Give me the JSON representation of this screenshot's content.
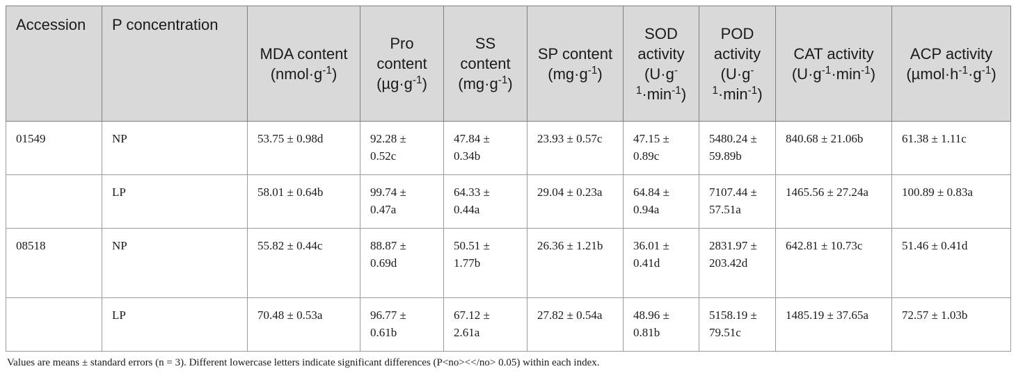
{
  "columns": [
    {
      "label": "Accession"
    },
    {
      "label": "P concentration"
    },
    {
      "html": "MDA content (nmol·g<sup>-1</sup>)"
    },
    {
      "html": "Pro content (µg·g<sup>-1</sup>)"
    },
    {
      "html": "SS content (mg·g<sup>-1</sup>)"
    },
    {
      "html": "SP content (mg·g<sup>-1</sup>)"
    },
    {
      "html": "SOD activity (U·g<sup>-1</sup>·min<sup>-1</sup>)"
    },
    {
      "html": "POD activity (U·g<sup>-1</sup>·min<sup>-1</sup>)"
    },
    {
      "html": "CAT activity (U·g<sup>-1</sup>·min<sup>-1</sup>)"
    },
    {
      "html": "ACP activity (µmol·h<sup>-1</sup>·g<sup>-1</sup>)"
    }
  ],
  "rows": [
    {
      "accession": "01549",
      "p": "NP",
      "mda": "53.75 ± 0.98d",
      "pro": "92.28 ± 0.52c",
      "ss": "47.84 ± 0.34b",
      "sp": "23.93 ± 0.57c",
      "sod": "47.15 ± 0.89c",
      "pod": "5480.24 ± 59.89b",
      "cat": "840.68 ± 21.06b",
      "acp": "61.38 ± 1.11c"
    },
    {
      "accession": "",
      "p": "LP",
      "mda": "58.01 ± 0.64b",
      "pro": "99.74 ± 0.47a",
      "ss": "64.33 ± 0.44a",
      "sp": "29.04 ± 0.23a",
      "sod": "64.84 ± 0.94a",
      "pod": "7107.44 ± 57.51a",
      "cat": "1465.56 ± 27.24a",
      "acp": "100.89 ± 0.83a"
    },
    {
      "accession": "08518",
      "p": "NP",
      "mda": "55.82 ± 0.44c",
      "pro": "88.87 ± 0.69d",
      "ss": "50.51 ± 1.77b",
      "sp": "26.36 ± 1.21b",
      "sod": "36.01 ± 0.41d",
      "pod": "2831.97 ± 203.42d",
      "cat": "642.81 ± 10.73c",
      "acp": "51.46 ± 0.41d"
    },
    {
      "accession": "",
      "p": "LP",
      "mda": "70.48 ± 0.53a",
      "pro": "96.77 ± 0.61b",
      "ss": "67.12 ± 2.61a",
      "sp": "27.82 ± 0.54a",
      "sod": "48.96 ± 0.81b",
      "pod": "5158.19 ± 79.51c",
      "cat": "1485.19 ± 37.65a",
      "acp": "72.57 ± 1.03b"
    }
  ],
  "footnote": "Values are means ± standard errors (n = 3). Different lowercase letters indicate significant differences (P<no><</no> 0.05) within each index."
}
